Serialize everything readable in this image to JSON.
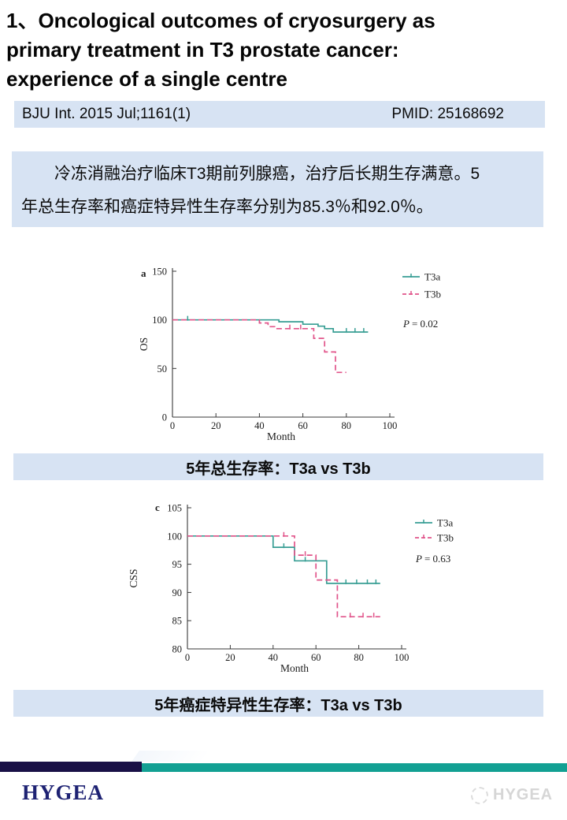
{
  "title": "1、Oncological outcomes of cryosurgery as\nprimary treatment in T3 prostate cancer:\nexperience of a single centre",
  "citation": {
    "journal": "BJU Int. 2015 Jul;1161(1)",
    "pmid": "PMID: 25168692"
  },
  "abstract": "　　冷冻消融治疗临床T3期前列腺癌，治疗后长期生存满意。5\n年总生存率和癌症特异性生存率分别为85.3％和92.0％。",
  "captions": {
    "os": "5年总生存率：T3a vs T3b",
    "css": "5年癌症特异性生存率：T3a vs T3b"
  },
  "footer": {
    "logo": "HYGEA",
    "watermark": "HYGEA"
  },
  "colors": {
    "panel_blue": "#d7e3f3",
    "teal_series": "#389e94",
    "pink_series": "#e1548a",
    "navy_bar": "#191046",
    "teal_bar": "#12a093",
    "logo_navy": "#1e2273"
  },
  "chart_data": [
    {
      "type": "line",
      "subtype": "kaplan-meier",
      "panel_label": "a",
      "xlabel": "Month",
      "ylabel": "OS",
      "xlim": [
        0,
        100
      ],
      "ylim": [
        0,
        150
      ],
      "xticks": [
        0,
        20,
        40,
        60,
        80,
        100
      ],
      "yticks": [
        0,
        50,
        100,
        150
      ],
      "grid": false,
      "legend_position": "upper right",
      "p_value": "P = 0.02",
      "series": [
        {
          "name": "T3a",
          "color": "#389e94",
          "style": "solid",
          "steps": [
            [
              0,
              100
            ],
            [
              49,
              100
            ],
            [
              49,
              98
            ],
            [
              60,
              98
            ],
            [
              60,
              95.5
            ],
            [
              67,
              95.5
            ],
            [
              67,
              93.5
            ],
            [
              70,
              93.5
            ],
            [
              70,
              91
            ],
            [
              74,
              91
            ],
            [
              74,
              87.5
            ],
            [
              90,
              87.5
            ]
          ],
          "censors": [
            [
              7,
              100
            ],
            [
              80,
              87.5
            ],
            [
              84,
              87.5
            ],
            [
              88,
              87.5
            ]
          ]
        },
        {
          "name": "T3b",
          "color": "#e1548a",
          "style": "dashed",
          "steps": [
            [
              0,
              100
            ],
            [
              40,
              100
            ],
            [
              40,
              96.8
            ],
            [
              44,
              96.8
            ],
            [
              44,
              93
            ],
            [
              47,
              93
            ],
            [
              47,
              91
            ],
            [
              65,
              91
            ],
            [
              65,
              81
            ],
            [
              70,
              81
            ],
            [
              70,
              67
            ],
            [
              75,
              67
            ],
            [
              75,
              46
            ],
            [
              80,
              46
            ]
          ],
          "censors": [
            [
              54,
              91
            ],
            [
              59,
              91
            ]
          ]
        }
      ]
    },
    {
      "type": "line",
      "subtype": "kaplan-meier",
      "panel_label": "c",
      "xlabel": "Month",
      "ylabel": "CSS",
      "xlim": [
        0,
        100
      ],
      "ylim": [
        80,
        105
      ],
      "xticks": [
        0,
        20,
        40,
        60,
        80,
        100
      ],
      "yticks": [
        80,
        85,
        90,
        95,
        100,
        105
      ],
      "grid": false,
      "legend_position": "upper right",
      "p_value": "P = 0.63",
      "series": [
        {
          "name": "T3a",
          "color": "#389e94",
          "style": "solid",
          "steps": [
            [
              0,
              100
            ],
            [
              40,
              100
            ],
            [
              40,
              98
            ],
            [
              50,
              98
            ],
            [
              50,
              95.6
            ],
            [
              65,
              95.6
            ],
            [
              65,
              91.6
            ],
            [
              90,
              91.6
            ]
          ],
          "censors": [
            [
              45,
              98
            ],
            [
              55,
              95.6
            ],
            [
              74,
              91.6
            ],
            [
              79,
              91.6
            ],
            [
              84,
              91.6
            ],
            [
              88,
              91.6
            ]
          ]
        },
        {
          "name": "T3b",
          "color": "#e1548a",
          "style": "dashed",
          "steps": [
            [
              0,
              100
            ],
            [
              50,
              100
            ],
            [
              50,
              96.6
            ],
            [
              60,
              96.6
            ],
            [
              60,
              92.2
            ],
            [
              70,
              92.2
            ],
            [
              70,
              85.7
            ],
            [
              90,
              85.7
            ]
          ],
          "censors": [
            [
              45,
              100
            ],
            [
              55,
              96.6
            ],
            [
              76,
              85.7
            ],
            [
              82,
              85.7
            ],
            [
              87,
              85.7
            ]
          ]
        }
      ]
    }
  ]
}
